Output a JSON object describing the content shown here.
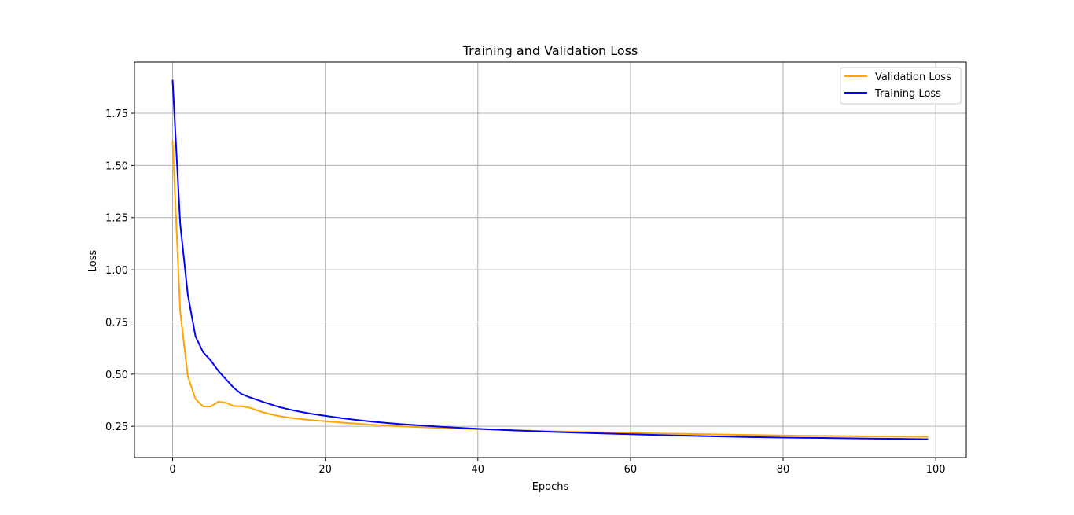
{
  "chart_data": {
    "type": "line",
    "title": "Training and Validation Loss",
    "xlabel": "Epochs",
    "ylabel": "Loss",
    "xlim": [
      -5,
      104
    ],
    "ylim": [
      0.1,
      1.995
    ],
    "xticks": [
      0,
      20,
      40,
      60,
      80,
      100
    ],
    "yticks": [
      0.25,
      0.5,
      0.75,
      1.0,
      1.25,
      1.5,
      1.75
    ],
    "xtick_labels": [
      "0",
      "20",
      "40",
      "60",
      "80",
      "100"
    ],
    "ytick_labels": [
      "0.25",
      "0.50",
      "0.75",
      "1.00",
      "1.25",
      "1.50",
      "1.75"
    ],
    "grid": true,
    "legend_position": "top-right",
    "series": [
      {
        "name": "Validation Loss",
        "color": "#ffa500",
        "x": [
          0,
          1,
          2,
          3,
          4,
          5,
          6,
          7,
          8,
          9,
          10,
          12,
          14,
          16,
          18,
          20,
          22,
          24,
          26,
          28,
          30,
          33,
          36,
          40,
          45,
          50,
          55,
          60,
          65,
          70,
          75,
          80,
          85,
          90,
          95,
          99
        ],
        "y": [
          1.62,
          0.8,
          0.49,
          0.38,
          0.345,
          0.345,
          0.368,
          0.363,
          0.347,
          0.346,
          0.34,
          0.315,
          0.298,
          0.288,
          0.28,
          0.274,
          0.268,
          0.263,
          0.258,
          0.254,
          0.25,
          0.245,
          0.241,
          0.236,
          0.231,
          0.226,
          0.222,
          0.218,
          0.215,
          0.212,
          0.209,
          0.206,
          0.204,
          0.202,
          0.201,
          0.2
        ]
      },
      {
        "name": "Training Loss",
        "color": "#0000ff",
        "x": [
          0,
          1,
          2,
          3,
          4,
          5,
          6,
          7,
          8,
          9,
          10,
          12,
          14,
          16,
          18,
          20,
          22,
          24,
          26,
          28,
          30,
          33,
          36,
          40,
          45,
          50,
          55,
          60,
          65,
          70,
          75,
          80,
          85,
          90,
          95,
          99
        ],
        "y": [
          1.91,
          1.22,
          0.88,
          0.68,
          0.605,
          0.565,
          0.515,
          0.475,
          0.435,
          0.405,
          0.39,
          0.365,
          0.342,
          0.325,
          0.311,
          0.3,
          0.29,
          0.281,
          0.273,
          0.266,
          0.26,
          0.253,
          0.246,
          0.238,
          0.23,
          0.223,
          0.217,
          0.212,
          0.207,
          0.203,
          0.199,
          0.196,
          0.194,
          0.192,
          0.19,
          0.188
        ]
      }
    ]
  }
}
